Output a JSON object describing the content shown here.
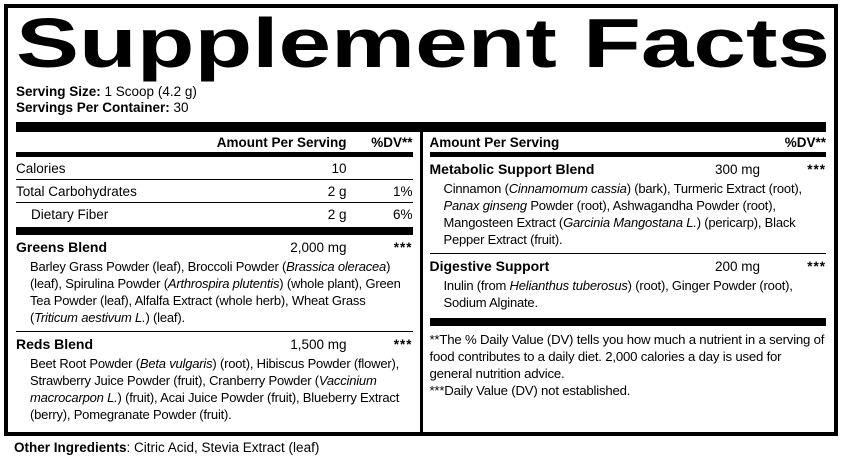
{
  "title": "Supplement Facts",
  "serving": {
    "size_label": "Serving Size:",
    "size_value": " 1 Scoop (4.2 g)",
    "container_label": "Servings Per Container:",
    "container_value": " 30"
  },
  "columns": {
    "header": {
      "amount": "Amount Per Serving",
      "dv": "%DV**"
    },
    "left": {
      "rows": [
        {
          "name": "Calories",
          "amount": "10",
          "dv": ""
        },
        {
          "name": "Total Carbohydrates",
          "amount": "2 g",
          "dv": "1%"
        },
        {
          "name": "Dietary Fiber",
          "amount": "2 g",
          "dv": "6%"
        }
      ],
      "blends": [
        {
          "name": "Greens Blend",
          "amount": "2,000 mg",
          "dv": "***",
          "desc": [
            {
              "t": "Barley Grass Powder (leaf), Broccoli Powder ("
            },
            {
              "t": "Brassica oleracea",
              "i": true
            },
            {
              "t": ") (leaf), Spirulina Powder ("
            },
            {
              "t": "Arthrospira plutentis",
              "i": true
            },
            {
              "t": ") (whole plant), Green Tea Powder (leaf), Alfalfa Extract (whole herb), Wheat Grass ("
            },
            {
              "t": "Triticum aestivum L.",
              "i": true
            },
            {
              "t": ") (leaf)."
            }
          ]
        },
        {
          "name": "Reds Blend",
          "amount": "1,500 mg",
          "dv": "***",
          "desc": [
            {
              "t": "Beet Root Powder ("
            },
            {
              "t": "Beta vulgaris",
              "i": true
            },
            {
              "t": ") (root), Hibiscus Powder (flower), Strawberry Juice Powder (fruit), Cranberry Powder ("
            },
            {
              "t": "Vaccinium macrocarpon L.",
              "i": true
            },
            {
              "t": ") (fruit), Acai Juice Powder (fruit), Blueberry Extract (berry), Pomegranate Powder (fruit)."
            }
          ]
        }
      ]
    },
    "right": {
      "blends": [
        {
          "name": "Metabolic Support Blend",
          "amount": "300 mg",
          "dv": "***",
          "desc": [
            {
              "t": "Cinnamon ("
            },
            {
              "t": "Cinnamomum cassia",
              "i": true
            },
            {
              "t": ") (bark), Turmeric Extract (root), "
            },
            {
              "t": "Panax ginseng",
              "i": true
            },
            {
              "t": " Powder (root), Ashwagandha Powder (root), Mangosteen Extract ("
            },
            {
              "t": "Garcinia Mangostana L.",
              "i": true
            },
            {
              "t": ") (pericarp), Black Pepper Extract (fruit)."
            }
          ]
        },
        {
          "name": "Digestive Support",
          "amount": "200 mg",
          "dv": "***",
          "desc": [
            {
              "t": "Inulin (from "
            },
            {
              "t": "Helianthus tuberosus",
              "i": true
            },
            {
              "t": ") (root), Ginger Powder (root), Sodium Alginate."
            }
          ]
        }
      ],
      "footnotes": [
        "**The % Daily Value (DV) tells you how much a nutrient in a serving of food contributes to a daily diet. 2,000 calories a day is used for general nutrition advice.",
        "***Daily Value (DV) not established."
      ]
    }
  },
  "other_ingredients": {
    "label": "Other Ingredients",
    "value": ": Citric Acid, Stevia Extract (leaf)"
  }
}
